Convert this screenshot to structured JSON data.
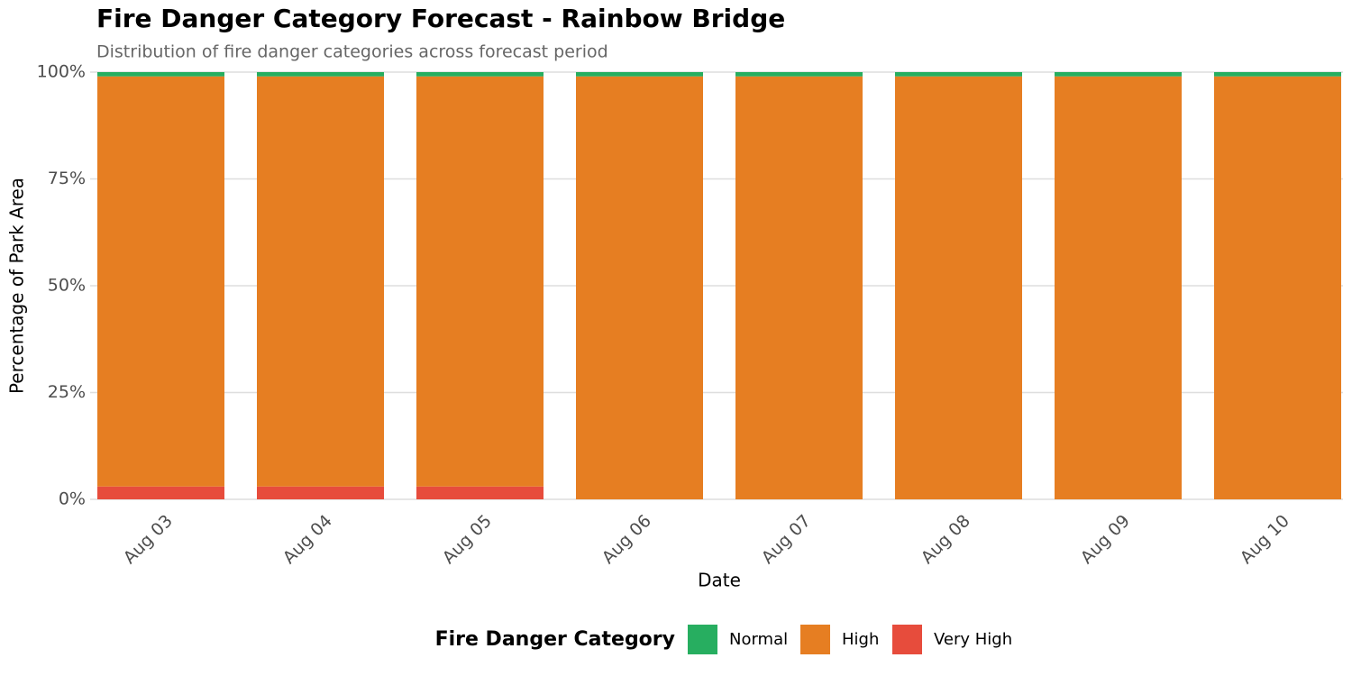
{
  "chart_data": {
    "type": "stacked_bar",
    "title": "Fire Danger Category Forecast - Rainbow Bridge",
    "subtitle": "Distribution of fire danger categories across forecast period",
    "x_label": "Date",
    "y_label": "Percentage of Park Area",
    "legend_title": "Fire Danger Category",
    "legend_position": "bottom",
    "categories": [
      "Aug 03",
      "Aug 04",
      "Aug 05",
      "Aug 06",
      "Aug 07",
      "Aug 08",
      "Aug 09",
      "Aug 10"
    ],
    "series": [
      {
        "name": "Normal",
        "color": "#27ae60",
        "values": [
          1,
          1,
          1,
          1,
          1,
          1,
          1,
          1
        ]
      },
      {
        "name": "High",
        "color": "#e67e22",
        "values": [
          96,
          96,
          96,
          99,
          99,
          99,
          99,
          99
        ]
      },
      {
        "name": "Very High",
        "color": "#e74c3c",
        "values": [
          3,
          3,
          3,
          0,
          0,
          0,
          0,
          0
        ]
      }
    ],
    "ylim": [
      0,
      100
    ],
    "yticks": [
      {
        "value": 0,
        "label": "0%"
      },
      {
        "value": 25,
        "label": "25%"
      },
      {
        "value": 50,
        "label": "50%"
      },
      {
        "value": 75,
        "label": "75%"
      },
      {
        "value": 100,
        "label": "100%"
      }
    ],
    "grid": true
  }
}
